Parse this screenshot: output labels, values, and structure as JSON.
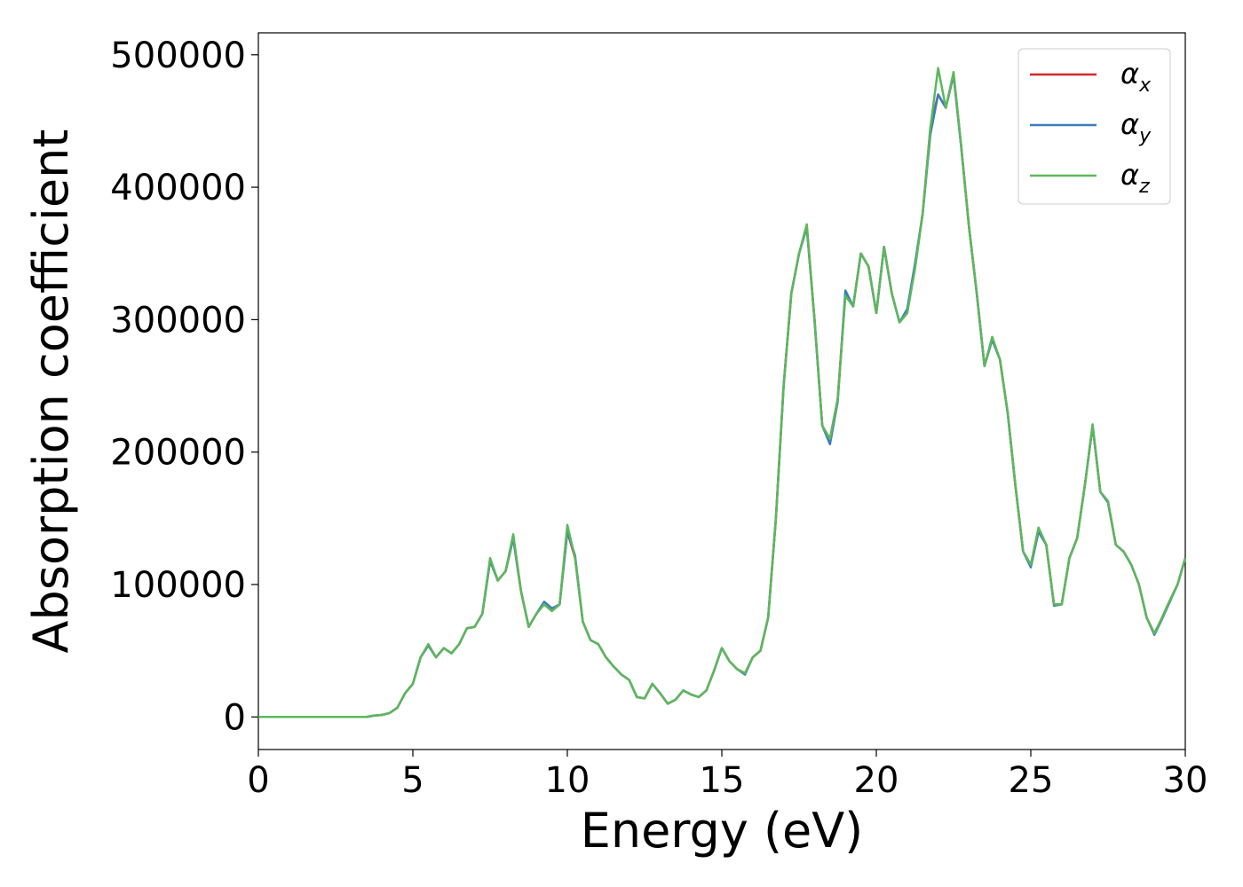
{
  "chart_data": {
    "type": "line",
    "xlabel": "Energy (eV)",
    "ylabel": "Absorption coefficient",
    "x": [
      0,
      0.25,
      0.5,
      0.75,
      1,
      1.25,
      1.5,
      1.75,
      2,
      2.25,
      2.5,
      2.75,
      3,
      3.25,
      3.5,
      3.75,
      4,
      4.25,
      4.5,
      4.75,
      5,
      5.25,
      5.5,
      5.75,
      6,
      6.25,
      6.5,
      6.75,
      7,
      7.25,
      7.5,
      7.75,
      8,
      8.25,
      8.5,
      8.75,
      9,
      9.25,
      9.5,
      9.75,
      10,
      10.25,
      10.5,
      10.75,
      11,
      11.25,
      11.5,
      11.75,
      12,
      12.25,
      12.5,
      12.75,
      13,
      13.25,
      13.5,
      13.75,
      14,
      14.25,
      14.5,
      14.75,
      15,
      15.25,
      15.5,
      15.75,
      16,
      16.25,
      16.5,
      16.75,
      17,
      17.25,
      17.5,
      17.75,
      18,
      18.25,
      18.5,
      18.75,
      19,
      19.25,
      19.5,
      19.75,
      20,
      20.25,
      20.5,
      20.75,
      21,
      21.25,
      21.5,
      21.75,
      22,
      22.25,
      22.5,
      22.75,
      23,
      23.25,
      23.5,
      23.75,
      24,
      24.25,
      24.5,
      24.75,
      25,
      25.25,
      25.5,
      25.75,
      26,
      26.25,
      26.5,
      26.75,
      27,
      27.25,
      27.5,
      27.75,
      28,
      28.25,
      28.5,
      28.75,
      29,
      29.25,
      29.5,
      29.75,
      30
    ],
    "series": [
      {
        "name": "αx",
        "color": "#d62728",
        "values": [
          0,
          0,
          0,
          0,
          0,
          0,
          0,
          0,
          0,
          0,
          0,
          0,
          0,
          0,
          0,
          1000,
          1500,
          3000,
          7000,
          18000,
          25000,
          45000,
          54000,
          45000,
          52000,
          48000,
          55000,
          67000,
          68000,
          78000,
          118000,
          103000,
          110000,
          135000,
          95000,
          68000,
          78000,
          85000,
          80000,
          85000,
          140000,
          120000,
          72000,
          58000,
          55000,
          45000,
          38000,
          32000,
          28000,
          15000,
          14000,
          25000,
          18000,
          10000,
          13000,
          20000,
          17000,
          15000,
          20000,
          35000,
          52000,
          42000,
          36000,
          33000,
          45000,
          50000,
          75000,
          150000,
          250000,
          320000,
          350000,
          370000,
          300000,
          220000,
          210000,
          240000,
          320000,
          310000,
          350000,
          340000,
          305000,
          355000,
          320000,
          298000,
          305000,
          340000,
          380000,
          445000,
          470000,
          460000,
          485000,
          430000,
          370000,
          320000,
          265000,
          285000,
          270000,
          230000,
          175000,
          125000,
          115000,
          140000,
          130000,
          85000,
          85000,
          120000,
          135000,
          175000,
          220000,
          170000,
          162000,
          130000,
          125000,
          115000,
          100000,
          75000,
          63000,
          75000,
          88000,
          100000,
          120000
        ]
      },
      {
        "name": "αy",
        "color": "#3b7dbd",
        "values": [
          0,
          0,
          0,
          0,
          0,
          0,
          0,
          0,
          0,
          0,
          0,
          0,
          0,
          0,
          0,
          1000,
          1500,
          3000,
          7000,
          18000,
          25000,
          45000,
          54000,
          45000,
          52000,
          48000,
          55000,
          67000,
          68000,
          78000,
          118000,
          103000,
          110000,
          135000,
          95000,
          68000,
          78000,
          87000,
          82000,
          85000,
          140000,
          122000,
          72000,
          58000,
          55000,
          45000,
          38000,
          32000,
          28000,
          15000,
          14000,
          25000,
          18000,
          10000,
          13000,
          20000,
          17000,
          15000,
          20000,
          35000,
          52000,
          42000,
          36000,
          32000,
          45000,
          50000,
          75000,
          150000,
          250000,
          320000,
          350000,
          370000,
          300000,
          220000,
          206000,
          238000,
          322000,
          310000,
          350000,
          340000,
          305000,
          355000,
          320000,
          298000,
          308000,
          342000,
          380000,
          440000,
          470000,
          460000,
          485000,
          430000,
          370000,
          320000,
          265000,
          285000,
          270000,
          230000,
          175000,
          125000,
          113000,
          140000,
          130000,
          84000,
          85000,
          120000,
          135000,
          175000,
          220000,
          170000,
          162000,
          130000,
          125000,
          115000,
          100000,
          75000,
          62000,
          74000,
          87000,
          100000,
          120000
        ]
      },
      {
        "name": "αz",
        "color": "#5cb85c",
        "values": [
          0,
          0,
          0,
          0,
          0,
          0,
          0,
          0,
          0,
          0,
          0,
          0,
          0,
          0,
          0,
          1000,
          1500,
          3000,
          7000,
          18000,
          25000,
          45000,
          55000,
          45000,
          52000,
          48000,
          55000,
          67000,
          68000,
          78000,
          120000,
          103000,
          110000,
          138000,
          95000,
          68000,
          78000,
          85000,
          80000,
          85000,
          145000,
          120000,
          72000,
          58000,
          55000,
          45000,
          38000,
          32000,
          28000,
          15000,
          14000,
          25000,
          18000,
          10000,
          13000,
          20000,
          17000,
          15000,
          20000,
          35000,
          52000,
          42000,
          36000,
          33000,
          45000,
          50000,
          75000,
          150000,
          250000,
          320000,
          350000,
          372000,
          300000,
          220000,
          210000,
          240000,
          318000,
          310000,
          350000,
          340000,
          305000,
          355000,
          320000,
          298000,
          305000,
          338000,
          380000,
          445000,
          490000,
          460000,
          487000,
          430000,
          370000,
          320000,
          265000,
          287000,
          270000,
          230000,
          175000,
          125000,
          115000,
          143000,
          130000,
          85000,
          85000,
          120000,
          135000,
          175000,
          221000,
          170000,
          163000,
          130000,
          125000,
          115000,
          100000,
          75000,
          63000,
          75000,
          88000,
          100000,
          120000
        ]
      }
    ],
    "xlim": [
      0,
      30
    ],
    "xticks": [
      0,
      5,
      10,
      15,
      20,
      25,
      30
    ],
    "ylim": [
      -24600,
      516600
    ],
    "yticks": [
      0,
      100000,
      200000,
      300000,
      400000,
      500000
    ],
    "legend": "upper right"
  }
}
